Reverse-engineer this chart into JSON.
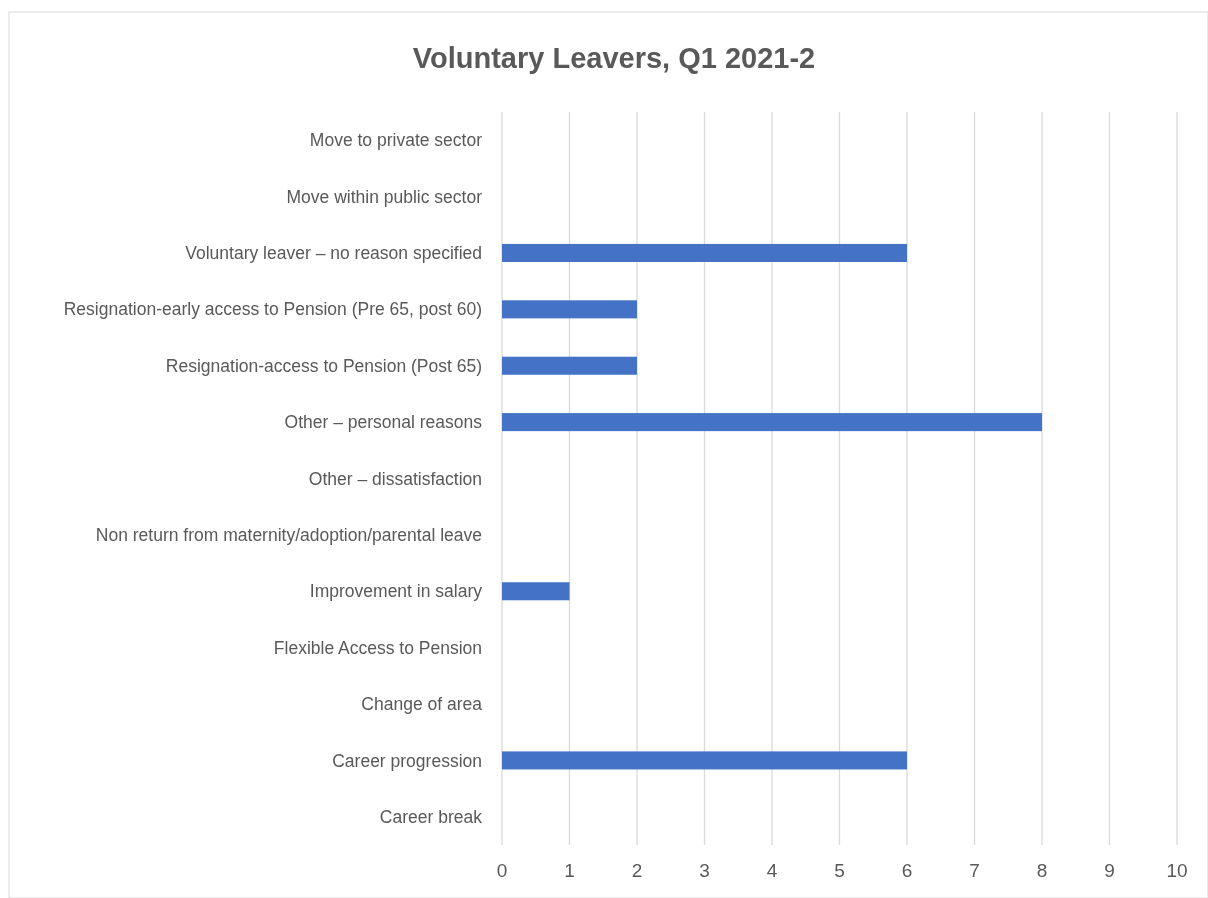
{
  "chart_data": {
    "type": "bar",
    "orientation": "horizontal",
    "title": "Voluntary Leavers, Q1 2021-2",
    "categories": [
      "Move to private sector",
      "Move within public sector",
      "Voluntary leaver – no reason specified",
      "Resignation-early access to Pension (Pre 65, post 60)",
      "Resignation-access to Pension (Post 65)",
      "Other – personal reasons",
      "Other – dissatisfaction",
      "Non return from maternity/adoption/parental leave",
      "Improvement in salary",
      "Flexible Access to Pension",
      "Change of area",
      "Career progression",
      "Career break"
    ],
    "values": [
      0,
      0,
      6,
      2,
      2,
      8,
      0,
      0,
      1,
      0,
      0,
      6,
      0
    ],
    "color": "#4472c4",
    "xlim": [
      0,
      10
    ],
    "xticks": [
      0,
      1,
      2,
      3,
      4,
      5,
      6,
      7,
      8,
      9,
      10
    ],
    "grid": "x"
  }
}
